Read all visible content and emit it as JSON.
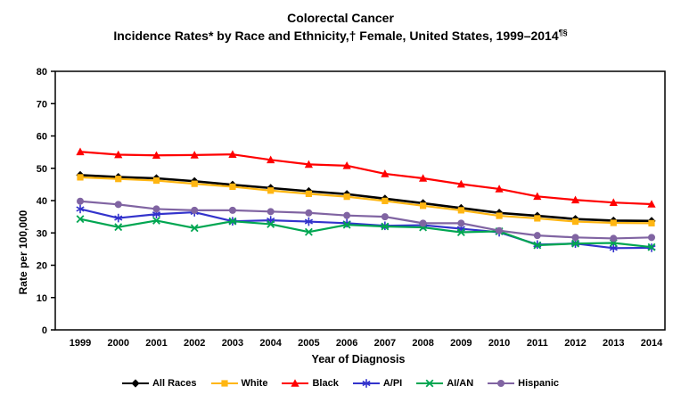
{
  "title": {
    "line1": "Colorectal Cancer",
    "line2": "Incidence Rates* by Race and Ethnicity,† Female, United States, 1999–2014",
    "line2_sup": "¶§"
  },
  "chart_data": {
    "type": "line",
    "title": "Colorectal Cancer Incidence Rates by Race and Ethnicity, Female, United States, 1999–2014",
    "xlabel": "Year of Diagnosis",
    "ylabel": "Rate per 100,000",
    "ylim": [
      0,
      80
    ],
    "ytick_step": 10,
    "grid": false,
    "legend_position": "bottom",
    "x": [
      1999,
      2000,
      2001,
      2002,
      2003,
      2004,
      2005,
      2006,
      2007,
      2008,
      2009,
      2010,
      2011,
      2012,
      2013,
      2014
    ],
    "series": [
      {
        "name": "All Races",
        "color": "#000000",
        "marker": "diamond",
        "width": 2.6,
        "values": [
          47.9,
          47.3,
          46.9,
          46.0,
          44.9,
          43.9,
          42.9,
          42.0,
          40.6,
          39.2,
          37.7,
          36.2,
          35.3,
          34.3,
          33.8,
          33.7
        ]
      },
      {
        "name": "White",
        "color": "#FFB612",
        "marker": "square",
        "width": 2.2,
        "values": [
          47.2,
          46.7,
          46.2,
          45.2,
          44.3,
          43.1,
          42.1,
          41.2,
          39.9,
          38.4,
          37.0,
          35.3,
          34.5,
          33.5,
          33.1,
          33.0
        ]
      },
      {
        "name": "Black",
        "color": "#FF0000",
        "marker": "triangle",
        "width": 2.2,
        "values": [
          55.1,
          54.2,
          54.0,
          54.1,
          54.3,
          52.6,
          51.2,
          50.8,
          48.3,
          46.9,
          45.1,
          43.6,
          41.3,
          40.2,
          39.4,
          38.9
        ]
      },
      {
        "name": "A/PI",
        "color": "#3333CC",
        "marker": "asterisk",
        "width": 2.2,
        "values": [
          37.4,
          34.6,
          35.8,
          36.4,
          33.6,
          33.9,
          33.5,
          33.0,
          32.2,
          32.4,
          31.3,
          30.2,
          26.4,
          26.7,
          25.3,
          25.4
        ]
      },
      {
        "name": "AI/AN",
        "color": "#00A651",
        "marker": "x",
        "width": 2.2,
        "values": [
          34.3,
          31.8,
          33.8,
          31.5,
          33.6,
          32.7,
          30.3,
          32.5,
          32.0,
          31.7,
          30.2,
          30.5,
          26.2,
          26.7,
          26.9,
          25.6
        ]
      },
      {
        "name": "Hispanic",
        "color": "#8064A2",
        "marker": "circle",
        "width": 2.2,
        "values": [
          39.8,
          38.8,
          37.4,
          37.0,
          37.0,
          36.6,
          36.2,
          35.4,
          35.0,
          33.0,
          33.0,
          30.7,
          29.2,
          28.6,
          28.3,
          28.6
        ]
      }
    ]
  }
}
